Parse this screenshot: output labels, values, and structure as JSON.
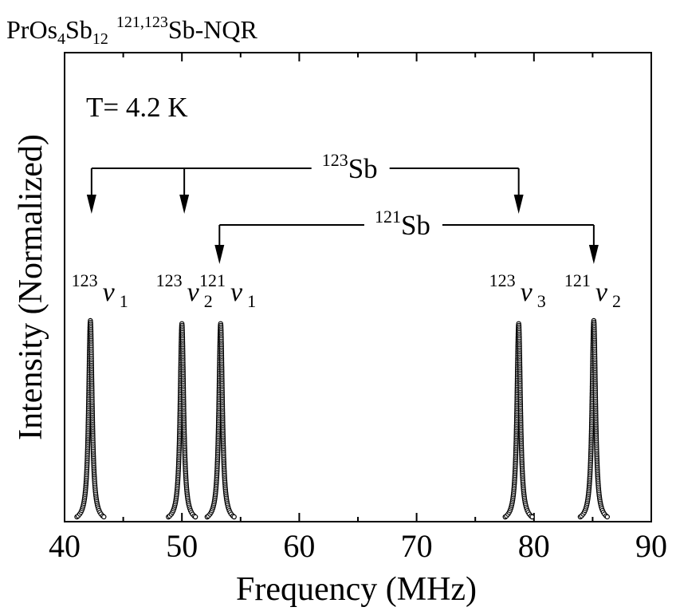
{
  "chart_data": {
    "type": "line",
    "title": {
      "compound": {
        "base1": "PrOs",
        "sub1": "4",
        "base2": "Sb",
        "sub2": "12"
      },
      "nucleus": {
        "sup": "121,123",
        "base": "Sb-NQR"
      }
    },
    "annotation_temperature": "T= 4.2 K",
    "xlabel": "Frequency (MHz)",
    "ylabel": "Intensity (Normalized)",
    "xlim": [
      40,
      90
    ],
    "ylim": [
      0,
      1
    ],
    "x_ticks": [
      40,
      50,
      60,
      70,
      80,
      90
    ],
    "x_minor_step": 5,
    "grid": false,
    "legend": "none",
    "marker": "open-circle",
    "peak_width_mhz": 0.18,
    "peak_extent_mhz": 1.15,
    "series": [
      {
        "center": 42.2,
        "height": 1.0
      },
      {
        "center": 50.0,
        "height": 0.985
      },
      {
        "center": 53.3,
        "height": 0.985
      },
      {
        "center": 78.7,
        "height": 0.985
      },
      {
        "center": 85.1,
        "height": 1.0
      }
    ],
    "peak_labels": [
      {
        "sup": "123",
        "sym": "ν",
        "sub": "1",
        "x": 43.0
      },
      {
        "sup": "123",
        "sym": "ν",
        "sub": "2",
        "x": 50.2
      },
      {
        "sup": "121",
        "sym": "ν",
        "sub": "1",
        "x": 53.9
      },
      {
        "sup": "123",
        "sym": "ν",
        "sub": "3",
        "x": 78.6
      },
      {
        "sup": "121",
        "sym": "ν",
        "sub": "2",
        "x": 85.0
      }
    ],
    "isotope_brackets": [
      {
        "sup": "123",
        "base": "Sb",
        "arrows_at": [
          42.3,
          50.2,
          78.7
        ],
        "label_x": 64.3
      },
      {
        "sup": "121",
        "base": "Sb",
        "arrows_at": [
          53.2,
          85.1
        ],
        "label_x": 68.8
      }
    ]
  }
}
